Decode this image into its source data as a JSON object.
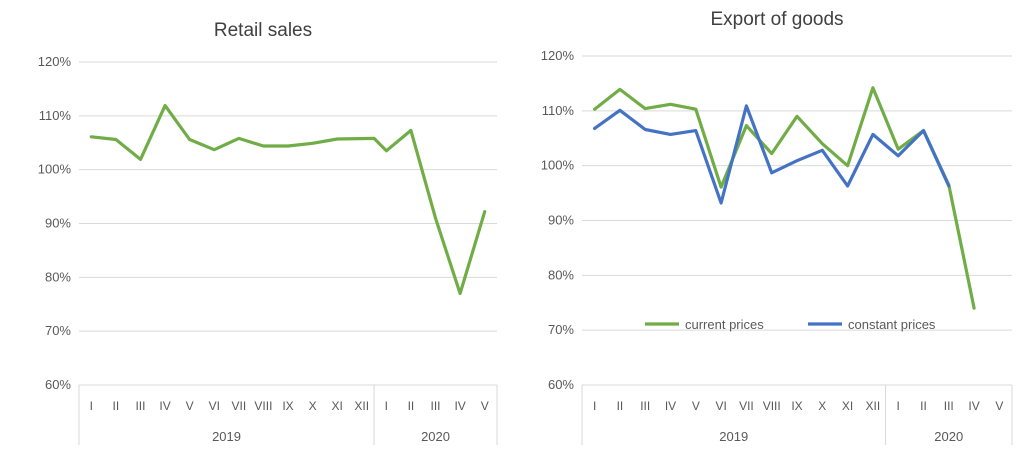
{
  "chart_data": [
    {
      "type": "line",
      "title": "Retail sales",
      "categories": [
        "I",
        "II",
        "III",
        "IV",
        "V",
        "VI",
        "VII",
        "VIII",
        "IX",
        "X",
        "XI",
        "XII",
        "I",
        "II",
        "III",
        "IV",
        "V"
      ],
      "groups": [
        {
          "label": "2019",
          "count": 12
        },
        {
          "label": "2020",
          "count": 5
        }
      ],
      "yticks": [
        "60%",
        "70%",
        "80%",
        "90%",
        "100%",
        "110%",
        "120%"
      ],
      "ylim": [
        60,
        120
      ],
      "grid": true,
      "colors": {
        "series": "#70ad47"
      },
      "series": [
        {
          "values": [
            106.1,
            105.6,
            101.9,
            111.9,
            105.6,
            103.7,
            105.8,
            104.4,
            104.4,
            104.9,
            105.7,
            null,
            103.5,
            107.3,
            91.0,
            77.0,
            92.2
          ],
          "connect_points": [
            [
              11.5,
              105.8
            ]
          ]
        }
      ]
    },
    {
      "type": "line",
      "title": "Export of goods",
      "categories": [
        "I",
        "II",
        "III",
        "IV",
        "V",
        "VI",
        "VII",
        "VIII",
        "IX",
        "X",
        "XI",
        "XII",
        "I",
        "II",
        "III",
        "IV",
        "V"
      ],
      "groups": [
        {
          "label": "2019",
          "count": 12
        },
        {
          "label": "2020",
          "count": 5
        }
      ],
      "yticks": [
        "60%",
        "70%",
        "80%",
        "90%",
        "100%",
        "110%",
        "120%"
      ],
      "ylim": [
        60,
        120
      ],
      "grid": true,
      "legend": "inside-bottom",
      "series": [
        {
          "name": "current prices",
          "color": "#70ad47",
          "values": [
            110.3,
            113.9,
            110.4,
            111.2,
            110.3,
            96.1,
            107.3,
            102.2,
            109.0,
            104.0,
            100.0,
            114.2,
            103.0,
            106.4,
            96.5,
            74.0,
            null
          ]
        },
        {
          "name": "constant prices",
          "color": "#4472c4",
          "values": [
            106.8,
            110.1,
            106.6,
            105.7,
            106.4,
            93.2,
            110.9,
            98.7,
            100.9,
            102.8,
            96.3,
            105.7,
            101.8,
            106.4,
            96.3,
            null,
            null
          ]
        }
      ]
    }
  ]
}
